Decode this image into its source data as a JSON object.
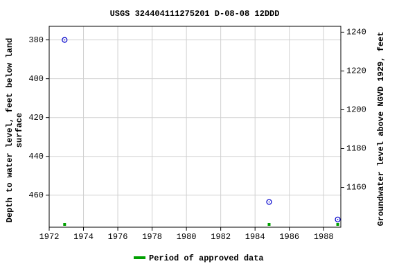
{
  "chart_data": {
    "type": "scatter",
    "title": "USGS 324404111275201 D-08-08 12DDD",
    "y_label": [
      "Depth to water level, feet below land",
      "surface"
    ],
    "y2_label": "Groundwater level above NGVD 1929, feet",
    "xlim": [
      1972,
      1989
    ],
    "xticks": [
      1972,
      1974,
      1976,
      1978,
      1980,
      1982,
      1984,
      1986,
      1988
    ],
    "ylim": [
      373,
      476.5
    ],
    "y_inverted": true,
    "yticks": [
      380,
      400,
      420,
      440,
      460
    ],
    "y2lim": [
      1139.5,
      1243
    ],
    "y2ticks": [
      1160,
      1180,
      1200,
      1220,
      1240
    ],
    "grid": true,
    "points": {
      "color": "#0000cc",
      "x": [
        1972.9,
        1984.82,
        1988.82
      ],
      "values": [
        380,
        463.5,
        472.5
      ]
    },
    "approved": {
      "name": "Period of approved data",
      "color": "#00a000",
      "x": [
        1972.9,
        1984.82,
        1988.82
      ]
    }
  }
}
